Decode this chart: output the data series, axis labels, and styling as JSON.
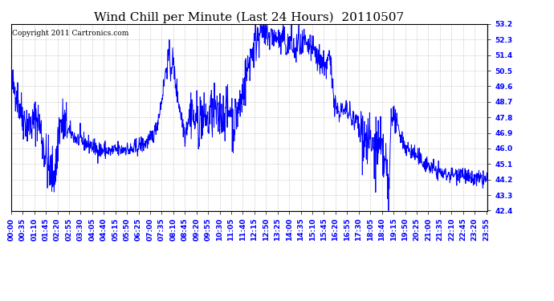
{
  "title": "Wind Chill per Minute (Last 24 Hours)  20110507",
  "copyright_text": "Copyright 2011 Cartronics.com",
  "line_color": "#0000FF",
  "bg_color": "#FFFFFF",
  "plot_bg_color": "#FFFFFF",
  "grid_color": "#AAAAAA",
  "yticks": [
    42.4,
    43.3,
    44.2,
    45.1,
    46.0,
    46.9,
    47.8,
    48.7,
    49.6,
    50.5,
    51.4,
    52.3,
    53.2
  ],
  "ylim": [
    42.4,
    53.2
  ],
  "title_fontsize": 11,
  "tick_fontsize": 6.5,
  "copyright_fontsize": 6.5,
  "tick_step": 35,
  "total_minutes": 1440
}
